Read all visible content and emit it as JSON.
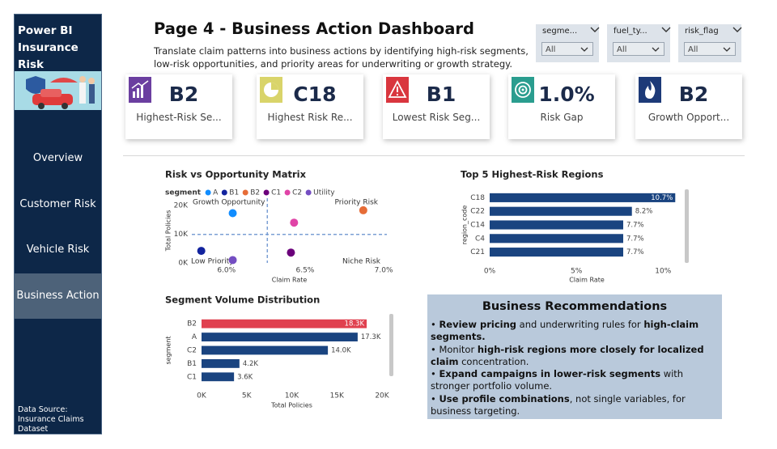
{
  "sidebar": {
    "title_lines": [
      "Power BI",
      "Insurance Risk"
    ],
    "nav": [
      "Overview",
      "Customer Risk",
      "Vehicle Risk",
      "Business Action"
    ],
    "active_nav": 3,
    "footer": "Data Source: Insurance Claims Dataset"
  },
  "header": {
    "title": "Page 4 - Business Action Dashboard",
    "subtitle_lines": [
      "Translate claim patterns into business actions by identifying high-risk segments,",
      "low-risk opportunities, and priority areas for underwriting or growth strategy."
    ]
  },
  "filters": [
    {
      "label": "segme...",
      "value": "All"
    },
    {
      "label": "fuel_ty...",
      "value": "All"
    },
    {
      "label": "risk_flag",
      "value": "All"
    }
  ],
  "kpis": [
    {
      "value": "B2",
      "label": "Highest-Risk Se...",
      "icon_color": "#6b3fa0"
    },
    {
      "value": "C18",
      "label": "Highest Risk Re...",
      "icon_color": "#d9d46a"
    },
    {
      "value": "B1",
      "label": "Lowest Risk Seg...",
      "icon_color": "#d9363e"
    },
    {
      "value": "1.0%",
      "label": "Risk Gap",
      "icon_color": "#2a9d8f"
    },
    {
      "value": "B2",
      "label": "Growth Opport...",
      "icon_color": "#1d3a78"
    }
  ],
  "chart_data": [
    {
      "type": "scatter",
      "title": "Risk vs Opportunity Matrix",
      "legend_title": "segment",
      "x_label": "Claim Rate",
      "y_label": "Total Policies",
      "xlim": [
        5.78,
        7.02
      ],
      "ylim": [
        0,
        22500
      ],
      "xticks": [
        {
          "value": 6.0,
          "label": "6.0%"
        },
        {
          "value": 6.5,
          "label": "6.5%"
        },
        {
          "value": 7.0,
          "label": "7.0%"
        }
      ],
      "yticks": [
        {
          "value": 0,
          "label": "0K"
        },
        {
          "value": 10000,
          "label": "10K"
        },
        {
          "value": 20000,
          "label": "20K"
        }
      ],
      "reference_lines": {
        "x": 6.26,
        "y": 9900
      },
      "annotations": [
        "Growth Opportunity",
        "Priority Risk",
        "Low Priority",
        "Niche Risk"
      ],
      "series": [
        {
          "name": "A",
          "color": "#118dff",
          "x": [
            6.04
          ],
          "values": [
            17300
          ]
        },
        {
          "name": "B1",
          "color": "#12239e",
          "x": [
            5.84
          ],
          "values": [
            4200
          ]
        },
        {
          "name": "B2",
          "color": "#e66c37",
          "x": [
            6.87
          ],
          "values": [
            18300
          ]
        },
        {
          "name": "C1",
          "color": "#6b007b",
          "x": [
            6.41
          ],
          "values": [
            3600
          ]
        },
        {
          "name": "C2",
          "color": "#e044a7",
          "x": [
            6.43
          ],
          "values": [
            14000
          ]
        },
        {
          "name": "Utility",
          "color": "#744ec2",
          "x": [
            6.04
          ],
          "values": [
            1000
          ]
        }
      ]
    },
    {
      "type": "hbar",
      "title": "Top 5 Highest-Risk Regions",
      "x_label": "Claim Rate",
      "y_label": "region_code",
      "categories": [
        "C18",
        "C22",
        "C14",
        "C4",
        "C21"
      ],
      "values": [
        10.7,
        8.2,
        7.7,
        7.7,
        7.7
      ],
      "value_labels": [
        "10.7%",
        "8.2%",
        "7.7%",
        "7.7%",
        "7.7%"
      ],
      "color": "#1a4480",
      "xlim": [
        0,
        11.2
      ],
      "xticks": [
        {
          "value": 0,
          "label": "0%"
        },
        {
          "value": 5,
          "label": "5%"
        },
        {
          "value": 10,
          "label": "10%"
        }
      ]
    },
    {
      "type": "hbar",
      "title": "Segment Volume Distribution",
      "x_label": "Total Policies",
      "y_label": "segment",
      "categories": [
        "B2",
        "A",
        "C2",
        "B1",
        "C1"
      ],
      "values": [
        18300,
        17300,
        14000,
        4200,
        3600
      ],
      "value_labels": [
        "18.3K",
        "17.3K",
        "14.0K",
        "4.2K",
        "3.6K"
      ],
      "colors": [
        "#e0404f",
        "#1a4480",
        "#1a4480",
        "#1a4480",
        "#1a4480"
      ],
      "xlim": [
        0,
        20000
      ],
      "xticks": [
        {
          "value": 0,
          "label": "0K"
        },
        {
          "value": 5000,
          "label": "5K"
        },
        {
          "value": 10000,
          "label": "10K"
        },
        {
          "value": 15000,
          "label": "15K"
        },
        {
          "value": 20000,
          "label": "20K"
        }
      ]
    }
  ],
  "recommendations": {
    "title": "Business Recommendations",
    "items": [
      [
        {
          "text": "Review pricing",
          "bold": true
        },
        {
          "text": " and underwriting rules for "
        },
        {
          "text": "high-claim segments.",
          "bold": true
        }
      ],
      [
        {
          "text": "Monitor "
        },
        {
          "text": "high-risk regions more closely for localized claim",
          "bold": true
        },
        {
          "text": " concentration."
        }
      ],
      [
        {
          "text": "Expand campaigns in lower-risk segments",
          "bold": true
        },
        {
          "text": " with stronger portfolio volume."
        }
      ],
      [
        {
          "text": "Use profile combinations",
          "bold": true
        },
        {
          "text": ", not single variables, for business targeting."
        }
      ]
    ]
  }
}
